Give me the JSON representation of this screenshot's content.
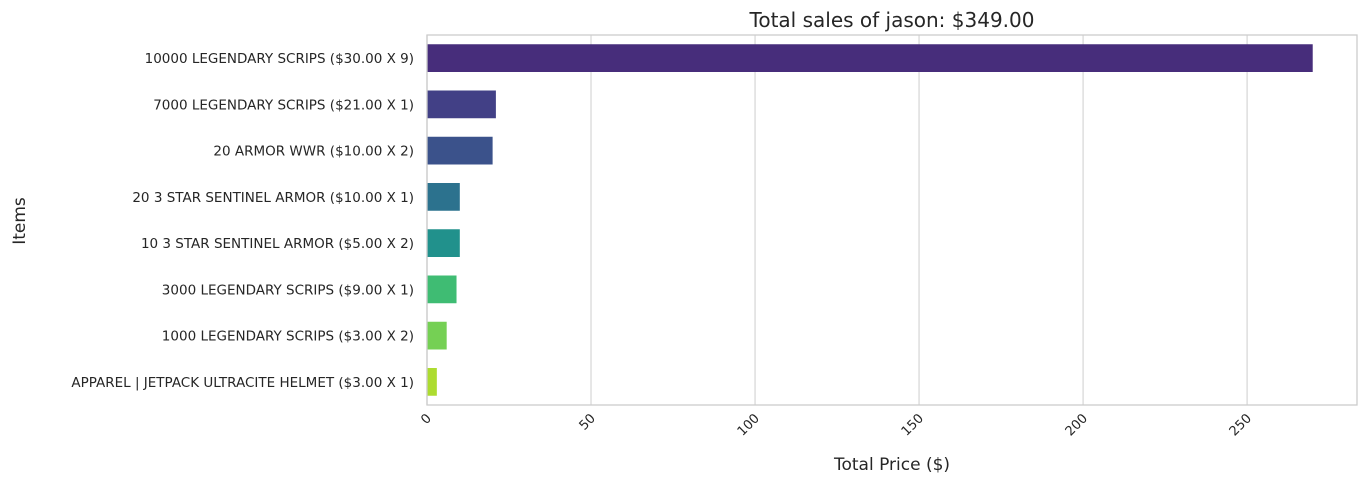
{
  "chart_data": {
    "type": "bar",
    "orientation": "horizontal",
    "title": "Total sales of jason: $349.00",
    "xlabel": "Total Price ($)",
    "ylabel": "Items",
    "categories": [
      "10000 LEGENDARY SCRIPS ($30.00 X 9)",
      "7000 LEGENDARY SCRIPS ($21.00 X 1)",
      "20 ARMOR WWR ($10.00 X 2)",
      "20 3 STAR SENTINEL ARMOR ($10.00 X 1)",
      "10 3 STAR SENTINEL ARMOR ($5.00 X 2)",
      "3000 LEGENDARY SCRIPS ($9.00 X 1)",
      "1000 LEGENDARY SCRIPS ($3.00 X 2)",
      "APPAREL | JETPACK ULTRACITE HELMET ($3.00 X 1)"
    ],
    "values": [
      270,
      21,
      20,
      10,
      10,
      9,
      6,
      3
    ],
    "colors": [
      "#472d7b",
      "#424086",
      "#3b528b",
      "#2c728e",
      "#21918c",
      "#3fbc73",
      "#75d054",
      "#addc30"
    ],
    "xlim": [
      0,
      283.5
    ],
    "xticks": [
      0,
      50,
      100,
      150,
      200,
      250
    ],
    "xtick_labels": [
      "0",
      "50",
      "100",
      "150",
      "200",
      "250"
    ],
    "xtick_rotation": 45,
    "grid": "vertical"
  }
}
